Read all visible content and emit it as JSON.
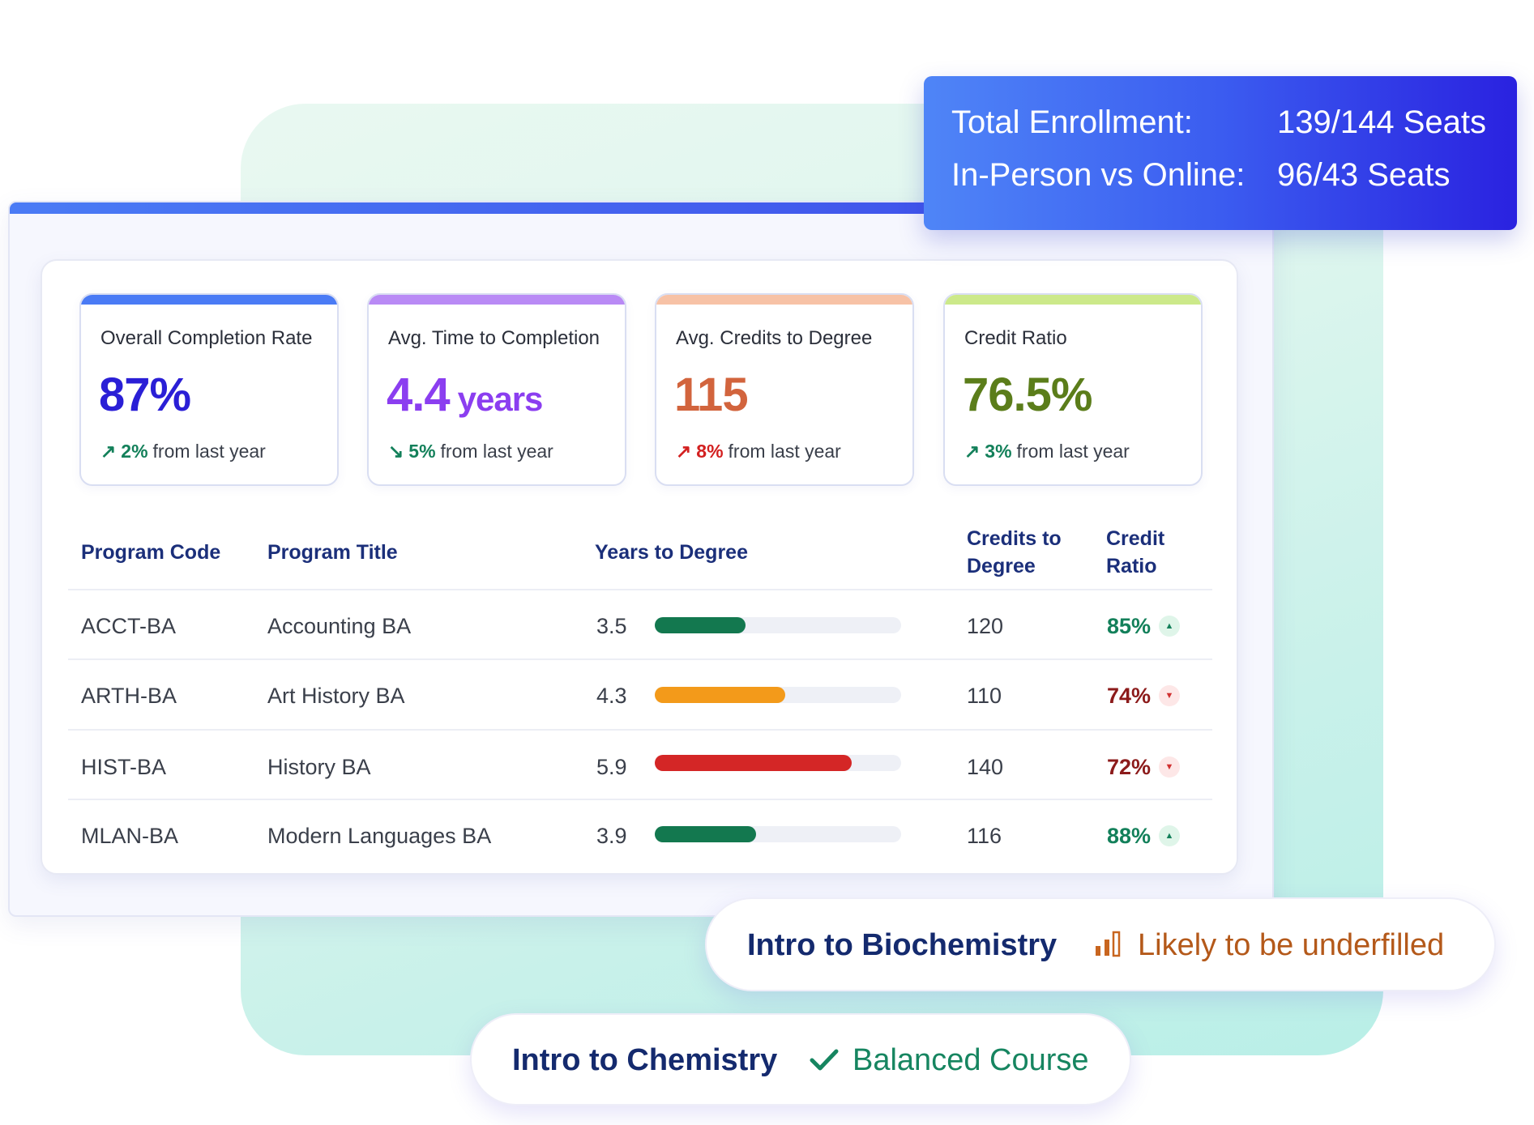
{
  "enrollment": {
    "total_label": "Total Enrollment:",
    "total_value": "139/144 Seats",
    "split_label": "In-Person vs Online:",
    "split_value": "96/43 Seats"
  },
  "stats": [
    {
      "label": "Overall Completion Rate",
      "value": "87%",
      "unit": "",
      "change_pct": "2%",
      "change_text": "from last year",
      "direction": "up",
      "accent": "#4a7bf5",
      "value_color": "#2a1fd6",
      "pct_color": "#13805a"
    },
    {
      "label": "Avg. Time to Completion",
      "value": "4.4",
      "unit": "years",
      "change_pct": "5%",
      "change_text": "from last year",
      "direction": "down",
      "accent": "#b98af5",
      "value_color": "#8b3ef0",
      "pct_color": "#13805a"
    },
    {
      "label": "Avg. Credits to Degree",
      "value": "115",
      "unit": "",
      "change_pct": "8%",
      "change_text": "from last year",
      "direction": "up",
      "accent": "#f7c2a6",
      "value_color": "#d2643d",
      "pct_color": "#d32020"
    },
    {
      "label": "Credit Ratio",
      "value": "76.5%",
      "unit": "",
      "change_pct": "3%",
      "change_text": "from last year",
      "direction": "up",
      "accent": "#cce98a",
      "value_color": "#5b7d1a",
      "pct_color": "#13805a"
    }
  ],
  "table": {
    "headers": {
      "code": "Program Code",
      "title": "Program Title",
      "years": "Years to Degree",
      "credits_line1": "Credits to",
      "credits_line2": "Degree",
      "ratio_line1": "Credit",
      "ratio_line2": "Ratio"
    },
    "rows": [
      {
        "code": "ACCT-BA",
        "title": "Accounting BA",
        "years": "3.5",
        "bar_fraction": 0.37,
        "bar_color": "#13784f",
        "credits": "120",
        "ratio": "85%",
        "trend": "up",
        "ratio_color": "#13805a"
      },
      {
        "code": "ARTH-BA",
        "title": "Art History BA",
        "years": "4.3",
        "bar_fraction": 0.53,
        "bar_color": "#f39a1a",
        "credits": "110",
        "ratio": "74%",
        "trend": "down",
        "ratio_color": "#8c1b1b"
      },
      {
        "code": "HIST-BA",
        "title": "History BA",
        "years": "5.9",
        "bar_fraction": 0.8,
        "bar_color": "#d42626",
        "credits": "140",
        "ratio": "72%",
        "trend": "down",
        "ratio_color": "#8c1b1b"
      },
      {
        "code": "MLAN-BA",
        "title": "Modern Languages BA",
        "years": "3.9",
        "bar_fraction": 0.41,
        "bar_color": "#13784f",
        "credits": "116",
        "ratio": "88%",
        "trend": "up",
        "ratio_color": "#13805a"
      }
    ]
  },
  "pills": {
    "biochem": {
      "course": "Intro to Biochemistry",
      "status": "Likely to be underfilled",
      "status_color": "#b4591a",
      "icon": "bar-signal-icon"
    },
    "chem": {
      "course": "Intro to Chemistry",
      "status": "Balanced Course",
      "status_color": "#168560",
      "icon": "check-icon"
    }
  }
}
